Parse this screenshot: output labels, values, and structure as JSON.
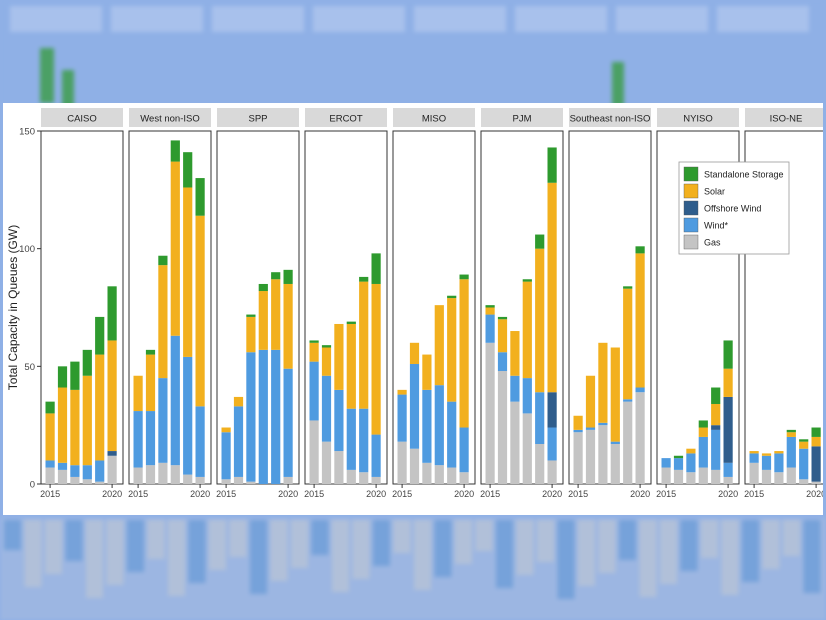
{
  "colors": {
    "storage": "#2e9a2e",
    "solar": "#f2b01e",
    "offshore": "#2f5d8c",
    "wind": "#4f9be0",
    "gas": "#c4c4c4",
    "strip": "#d9d9d9",
    "backdrop": "#8fb0e6"
  },
  "chart_data": {
    "type": "bar",
    "stacked": true,
    "ylabel": "Total Capacity in Queues (GW)",
    "ylim": [
      0,
      150
    ],
    "yticks": [
      0,
      50,
      100,
      150
    ],
    "x": [
      2015,
      2016,
      2017,
      2018,
      2019,
      2020
    ],
    "xticks": [
      "2015",
      "2020"
    ],
    "grid": false,
    "legend": {
      "placement": "top-right",
      "entries": [
        "Standalone Storage",
        "Solar",
        "Offshore Wind",
        "Wind*",
        "Gas"
      ]
    },
    "series_order": [
      "gas",
      "wind",
      "offshore",
      "solar",
      "storage"
    ],
    "panels": [
      {
        "name": "CAISO",
        "values": {
          "gas": [
            7,
            6,
            3,
            2,
            1,
            12
          ],
          "wind": [
            3,
            3,
            5,
            6,
            9,
            0
          ],
          "offshore": [
            0,
            0,
            0,
            0,
            0,
            2
          ],
          "solar": [
            20,
            32,
            32,
            38,
            45,
            47
          ],
          "storage": [
            5,
            9,
            12,
            11,
            16,
            23
          ]
        }
      },
      {
        "name": "West non-ISO",
        "values": {
          "gas": [
            7,
            8,
            9,
            8,
            4,
            3
          ],
          "wind": [
            24,
            23,
            36,
            55,
            50,
            30
          ],
          "offshore": [
            0,
            0,
            0,
            0,
            0,
            0
          ],
          "solar": [
            15,
            24,
            48,
            74,
            72,
            81
          ],
          "storage": [
            0,
            2,
            4,
            9,
            15,
            16
          ]
        }
      },
      {
        "name": "SPP",
        "values": {
          "gas": [
            2,
            3,
            1,
            0,
            0,
            3
          ],
          "wind": [
            20,
            30,
            55,
            57,
            57,
            46
          ],
          "offshore": [
            0,
            0,
            0,
            0,
            0,
            0
          ],
          "solar": [
            2,
            4,
            15,
            25,
            30,
            36
          ],
          "storage": [
            0,
            0,
            1,
            3,
            3,
            6
          ]
        }
      },
      {
        "name": "ERCOT",
        "values": {
          "gas": [
            27,
            18,
            14,
            6,
            5,
            3
          ],
          "wind": [
            25,
            28,
            26,
            26,
            27,
            18
          ],
          "offshore": [
            0,
            0,
            0,
            0,
            0,
            0
          ],
          "solar": [
            8,
            12,
            28,
            36,
            54,
            64
          ],
          "storage": [
            1,
            1,
            0,
            1,
            2,
            13
          ]
        }
      },
      {
        "name": "MISO",
        "values": {
          "gas": [
            18,
            15,
            9,
            8,
            7,
            5
          ],
          "wind": [
            20,
            36,
            31,
            34,
            28,
            19
          ],
          "offshore": [
            0,
            0,
            0,
            0,
            0,
            0
          ],
          "solar": [
            2,
            9,
            15,
            34,
            44,
            63
          ],
          "storage": [
            0,
            0,
            0,
            0,
            1,
            2
          ]
        }
      },
      {
        "name": "PJM",
        "values": {
          "gas": [
            60,
            48,
            35,
            30,
            17,
            10
          ],
          "wind": [
            12,
            8,
            11,
            15,
            22,
            14
          ],
          "offshore": [
            0,
            0,
            0,
            0,
            0,
            15
          ],
          "solar": [
            3,
            14,
            19,
            41,
            61,
            89
          ],
          "storage": [
            1,
            1,
            0,
            1,
            6,
            15
          ]
        }
      },
      {
        "name": "Southeast non-ISO",
        "values": {
          "gas": [
            22,
            23,
            25,
            17,
            35,
            39
          ],
          "wind": [
            1,
            1,
            1,
            1,
            1,
            2
          ],
          "offshore": [
            0,
            0,
            0,
            0,
            0,
            0
          ],
          "solar": [
            6,
            22,
            34,
            40,
            47,
            57
          ],
          "storage": [
            0,
            0,
            0,
            0,
            1,
            3
          ]
        }
      },
      {
        "name": "NYISO",
        "values": {
          "gas": [
            7,
            6,
            5,
            7,
            6,
            3
          ],
          "wind": [
            4,
            5,
            8,
            13,
            17,
            6
          ],
          "offshore": [
            0,
            0,
            0,
            0,
            2,
            28
          ],
          "solar": [
            0,
            0,
            2,
            4,
            9,
            12
          ],
          "storage": [
            0,
            1,
            0,
            3,
            7,
            12
          ]
        }
      },
      {
        "name": "ISO-NE",
        "values": {
          "gas": [
            9,
            6,
            5,
            7,
            2,
            1
          ],
          "wind": [
            4,
            6,
            8,
            13,
            13,
            0
          ],
          "offshore": [
            0,
            0,
            0,
            0,
            0,
            15
          ],
          "solar": [
            1,
            1,
            1,
            2,
            3,
            4
          ],
          "storage": [
            0,
            0,
            0,
            1,
            1,
            4
          ]
        }
      }
    ]
  }
}
